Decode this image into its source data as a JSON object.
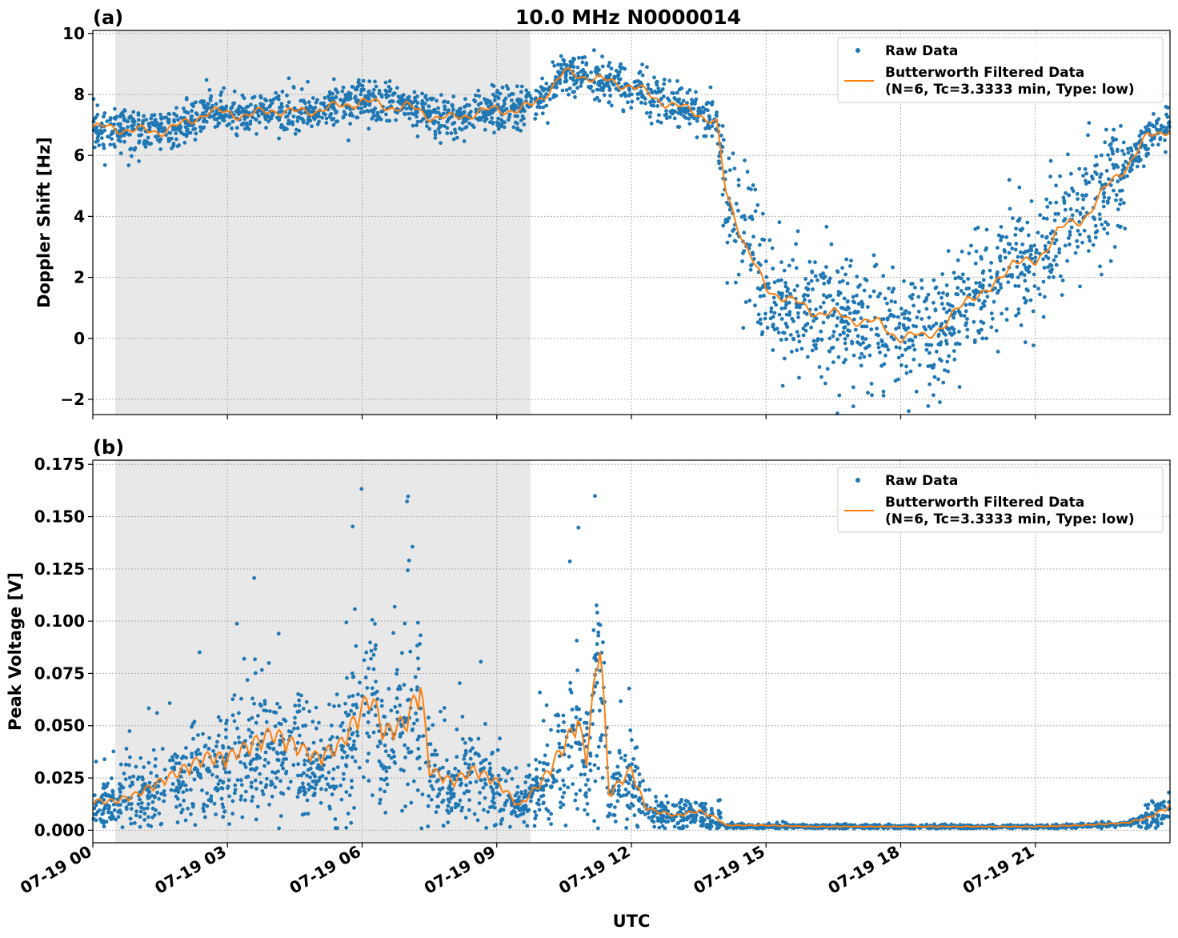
{
  "figure": {
    "title": "10.0 MHz N0000014",
    "xlabel": "UTC",
    "colors": {
      "raw": "#1f77b4",
      "filtered": "#ff7f0e",
      "night_shade": "#e8e8e8",
      "grid": "#b0b0b0"
    }
  },
  "chart_data": [
    {
      "type": "scatter",
      "panel_label": "(a)",
      "ylabel": "Doppler Shift [Hz]",
      "xlim_hours": [
        0,
        24
      ],
      "ylim": [
        -2.5,
        10.1
      ],
      "yticks": [
        -2,
        0,
        2,
        4,
        6,
        8,
        10
      ],
      "ytick_labels": [
        "−2",
        "0",
        "2",
        "4",
        "6",
        "8",
        "10"
      ],
      "shaded_span_hours": [
        0.5,
        9.75
      ],
      "grid": true,
      "legend": {
        "position": "top-right",
        "raw_label": "Raw Data",
        "filtered_label_line1": "Butterworth Filtered Data",
        "filtered_label_line2": "(N=6, Tc=3.3333 min, Type: low)"
      },
      "series": [
        {
          "name": "Raw Data",
          "style": "points"
        },
        {
          "name": "Butterworth Filtered Data",
          "style": "line",
          "x_hours": [
            0,
            0.5,
            1,
            1.5,
            2,
            2.5,
            3,
            3.5,
            4,
            4.5,
            5,
            5.5,
            6,
            6.5,
            7,
            7.5,
            8,
            8.5,
            9,
            9.5,
            9.75,
            10,
            10.5,
            11,
            11.5,
            12,
            12.5,
            13,
            13.5,
            13.9,
            14.1,
            14.5,
            15,
            15.5,
            16,
            16.5,
            17,
            17.5,
            18,
            18.5,
            19,
            19.5,
            20,
            20.5,
            21,
            21.5,
            22,
            22.5,
            23,
            23.5,
            24
          ],
          "values": [
            6.9,
            6.9,
            6.8,
            6.8,
            7.0,
            7.4,
            7.4,
            7.3,
            7.5,
            7.4,
            7.5,
            7.6,
            7.8,
            7.6,
            7.6,
            7.3,
            7.2,
            7.4,
            7.5,
            7.5,
            7.6,
            7.9,
            8.7,
            8.6,
            8.4,
            8.3,
            7.9,
            7.6,
            7.4,
            7.0,
            4.8,
            3.2,
            1.6,
            1.3,
            0.9,
            0.8,
            0.6,
            0.5,
            0.0,
            0.1,
            0.4,
            1.4,
            1.5,
            2.6,
            2.4,
            3.6,
            3.8,
            4.8,
            5.6,
            6.6,
            6.9
          ]
        }
      ]
    },
    {
      "type": "scatter",
      "panel_label": "(b)",
      "ylabel": "Peak Voltage [V]",
      "xlim_hours": [
        0,
        24
      ],
      "ylim": [
        -0.006,
        0.177
      ],
      "yticks": [
        0,
        0.025,
        0.05,
        0.075,
        0.1,
        0.125,
        0.15,
        0.175
      ],
      "ytick_labels": [
        "0.000",
        "0.025",
        "0.050",
        "0.075",
        "0.100",
        "0.125",
        "0.150",
        "0.175"
      ],
      "shaded_span_hours": [
        0.5,
        9.75
      ],
      "grid": true,
      "legend": {
        "position": "top-right",
        "raw_label": "Raw Data",
        "filtered_label_line1": "Butterworth Filtered Data",
        "filtered_label_line2": "(N=6, Tc=3.3333 min, Type: low)"
      },
      "series": [
        {
          "name": "Raw Data",
          "style": "points"
        },
        {
          "name": "Butterworth Filtered Data",
          "style": "line",
          "x_hours": [
            0,
            0.5,
            1,
            1.5,
            2,
            2.5,
            3,
            3.5,
            4,
            4.5,
            5,
            5.5,
            6,
            6.2,
            6.5,
            7,
            7.3,
            7.5,
            8,
            8.5,
            9,
            9.5,
            10,
            10.5,
            10.8,
            11,
            11.3,
            11.5,
            12,
            12.3,
            12.5,
            13,
            13.5,
            13.9,
            14.1,
            15,
            16,
            17,
            18,
            19,
            20,
            21,
            22,
            23,
            23.5,
            24
          ],
          "values": [
            0.012,
            0.012,
            0.015,
            0.02,
            0.025,
            0.03,
            0.03,
            0.035,
            0.04,
            0.035,
            0.03,
            0.035,
            0.05,
            0.055,
            0.04,
            0.045,
            0.06,
            0.025,
            0.02,
            0.025,
            0.02,
            0.01,
            0.02,
            0.035,
            0.045,
            0.03,
            0.08,
            0.015,
            0.025,
            0.01,
            0.008,
            0.006,
            0.008,
            0.005,
            0.002,
            0.002,
            0.0015,
            0.0015,
            0.0015,
            0.0015,
            0.0015,
            0.0015,
            0.002,
            0.003,
            0.005,
            0.01
          ]
        }
      ]
    }
  ],
  "x_axis": {
    "ticks_hours": [
      0,
      3,
      6,
      9,
      12,
      15,
      18,
      21
    ],
    "tick_labels": [
      "07-19 00",
      "07-19 03",
      "07-19 06",
      "07-19 09",
      "07-19 12",
      "07-19 15",
      "07-19 18",
      "07-19 21"
    ]
  }
}
